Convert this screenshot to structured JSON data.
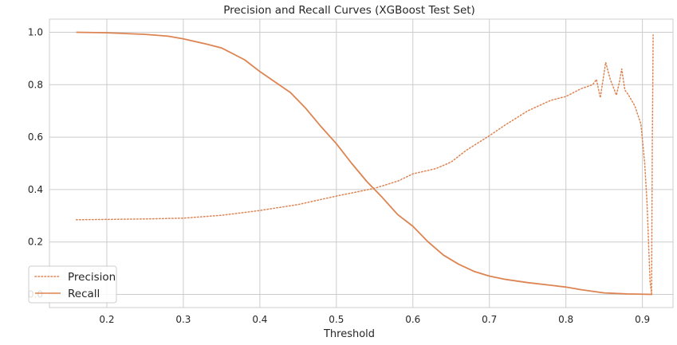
{
  "chart_data": {
    "type": "line",
    "title": "Precision and Recall Curves (XGBoost Test Set)",
    "xlabel": "Threshold",
    "ylabel": "",
    "xlim": [
      0.125,
      0.94
    ],
    "ylim": [
      -0.05,
      1.05
    ],
    "xticks": [
      0.2,
      0.3,
      0.4,
      0.5,
      0.6,
      0.7,
      0.8,
      0.9
    ],
    "xtick_labels": [
      "0.2",
      "0.3",
      "0.4",
      "0.5",
      "0.6",
      "0.7",
      "0.8",
      "0.9"
    ],
    "yticks": [
      0.0,
      0.2,
      0.4,
      0.6,
      0.8,
      1.0
    ],
    "ytick_labels": [
      "0.0",
      "0.2",
      "0.4",
      "0.6",
      "0.8",
      "1.0"
    ],
    "grid": true,
    "legend_position": "lower-left",
    "series": [
      {
        "name": "Precision",
        "style": "dotted",
        "color": "#dd8452",
        "points": [
          [
            0.16,
            0.285
          ],
          [
            0.2,
            0.286
          ],
          [
            0.25,
            0.288
          ],
          [
            0.3,
            0.291
          ],
          [
            0.35,
            0.302
          ],
          [
            0.4,
            0.32
          ],
          [
            0.45,
            0.343
          ],
          [
            0.5,
            0.375
          ],
          [
            0.55,
            0.405
          ],
          [
            0.58,
            0.432
          ],
          [
            0.6,
            0.46
          ],
          [
            0.63,
            0.48
          ],
          [
            0.65,
            0.505
          ],
          [
            0.67,
            0.55
          ],
          [
            0.7,
            0.605
          ],
          [
            0.72,
            0.645
          ],
          [
            0.75,
            0.7
          ],
          [
            0.78,
            0.74
          ],
          [
            0.8,
            0.755
          ],
          [
            0.82,
            0.785
          ],
          [
            0.835,
            0.8
          ],
          [
            0.84,
            0.82
          ],
          [
            0.845,
            0.75
          ],
          [
            0.852,
            0.885
          ],
          [
            0.858,
            0.82
          ],
          [
            0.862,
            0.79
          ],
          [
            0.866,
            0.76
          ],
          [
            0.87,
            0.81
          ],
          [
            0.873,
            0.86
          ],
          [
            0.877,
            0.78
          ],
          [
            0.882,
            0.76
          ],
          [
            0.89,
            0.72
          ],
          [
            0.898,
            0.65
          ],
          [
            0.903,
            0.5
          ],
          [
            0.906,
            0.35
          ],
          [
            0.908,
            0.2
          ],
          [
            0.91,
            0.05
          ],
          [
            0.912,
            0.003
          ],
          [
            0.913,
            0.6
          ],
          [
            0.914,
            0.99
          ]
        ]
      },
      {
        "name": "Recall",
        "style": "solid",
        "color": "#dd8452",
        "points": [
          [
            0.16,
            1.0
          ],
          [
            0.2,
            0.998
          ],
          [
            0.25,
            0.992
          ],
          [
            0.28,
            0.985
          ],
          [
            0.3,
            0.975
          ],
          [
            0.33,
            0.955
          ],
          [
            0.35,
            0.94
          ],
          [
            0.38,
            0.895
          ],
          [
            0.4,
            0.85
          ],
          [
            0.42,
            0.81
          ],
          [
            0.44,
            0.77
          ],
          [
            0.46,
            0.71
          ],
          [
            0.48,
            0.64
          ],
          [
            0.5,
            0.575
          ],
          [
            0.52,
            0.5
          ],
          [
            0.54,
            0.43
          ],
          [
            0.56,
            0.37
          ],
          [
            0.58,
            0.305
          ],
          [
            0.6,
            0.26
          ],
          [
            0.62,
            0.2
          ],
          [
            0.64,
            0.15
          ],
          [
            0.66,
            0.115
          ],
          [
            0.68,
            0.088
          ],
          [
            0.7,
            0.07
          ],
          [
            0.72,
            0.058
          ],
          [
            0.75,
            0.045
          ],
          [
            0.78,
            0.035
          ],
          [
            0.8,
            0.028
          ],
          [
            0.82,
            0.018
          ],
          [
            0.85,
            0.006
          ],
          [
            0.88,
            0.002
          ],
          [
            0.913,
            0.0
          ]
        ]
      }
    ]
  }
}
